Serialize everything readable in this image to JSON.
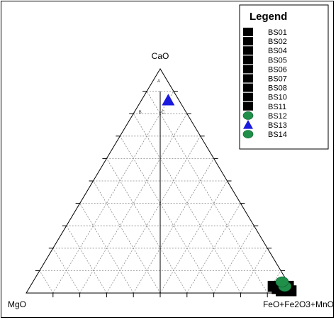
{
  "chart_data": {
    "type": "ternary",
    "title": "",
    "vertices": {
      "top": "CaO",
      "left": "MgO",
      "right": "FeO+Fe2O3+MnO"
    },
    "grid": true,
    "grid_step": 10,
    "field_labels": [
      "A",
      "B",
      "C"
    ],
    "legend": {
      "title": "Legend",
      "placement": "top-right",
      "entries": [
        {
          "name": "BS01",
          "marker": "square",
          "color": "#000000"
        },
        {
          "name": "BS02",
          "marker": "square",
          "color": "#000000"
        },
        {
          "name": "BS04",
          "marker": "square",
          "color": "#000000"
        },
        {
          "name": "BS05",
          "marker": "square",
          "color": "#000000"
        },
        {
          "name": "BS06",
          "marker": "square",
          "color": "#000000"
        },
        {
          "name": "BS07",
          "marker": "square",
          "color": "#000000"
        },
        {
          "name": "BS08",
          "marker": "square",
          "color": "#000000"
        },
        {
          "name": "BS10",
          "marker": "square",
          "color": "#000000"
        },
        {
          "name": "BS11",
          "marker": "square",
          "color": "#000000"
        },
        {
          "name": "BS12",
          "marker": "circle",
          "color": "#1f8f4a"
        },
        {
          "name": "BS13",
          "marker": "triangle",
          "color": "#1a1adf"
        },
        {
          "name": "BS14",
          "marker": "circle",
          "color": "#1f8f4a"
        }
      ]
    },
    "points": [
      {
        "series": "BS01",
        "CaO": 3,
        "MgO": 6,
        "FeO+Fe2O3+MnO": 91
      },
      {
        "series": "BS02",
        "CaO": 2,
        "MgO": 5,
        "FeO+Fe2O3+MnO": 93
      },
      {
        "series": "BS04",
        "CaO": 2,
        "MgO": 3,
        "FeO+Fe2O3+MnO": 95
      },
      {
        "series": "BS05",
        "CaO": 1,
        "MgO": 4,
        "FeO+Fe2O3+MnO": 95
      },
      {
        "series": "BS06",
        "CaO": 3,
        "MgO": 3,
        "FeO+Fe2O3+MnO": 94
      },
      {
        "series": "BS07",
        "CaO": 2,
        "MgO": 2,
        "FeO+Fe2O3+MnO": 96
      },
      {
        "series": "BS08",
        "CaO": 1,
        "MgO": 2,
        "FeO+Fe2O3+MnO": 97
      },
      {
        "series": "BS10",
        "CaO": 3,
        "MgO": 1,
        "FeO+Fe2O3+MnO": 96
      },
      {
        "series": "BS11",
        "CaO": 1,
        "MgO": 1,
        "FeO+Fe2O3+MnO": 98
      },
      {
        "series": "BS12",
        "CaO": 3,
        "MgO": 2,
        "FeO+Fe2O3+MnO": 95
      },
      {
        "series": "BS13",
        "CaO": 86,
        "MgO": 4,
        "FeO+Fe2O3+MnO": 10
      },
      {
        "series": "BS14",
        "CaO": 5,
        "MgO": 2,
        "FeO+Fe2O3+MnO": 93
      }
    ]
  }
}
